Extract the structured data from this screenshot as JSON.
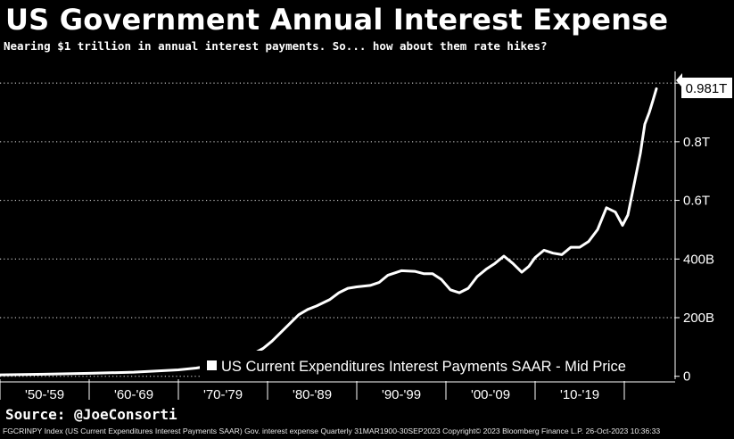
{
  "title": "US Government Annual Interest Expense",
  "subtitle": "Nearing $1 trillion in annual interest payments. So... how about them rate hikes?",
  "source": "Source: @JoeConsorti",
  "footer": "FGCRINPY Index (US Current Expenditures Interest Payments SAAR) Gov. interest expense  Quarterly 31MAR1900-30SEP2023  Copyright© 2023 Bloomberg Finance L.P.  26-Oct-2023 10:36:33",
  "colors": {
    "background": "#000000",
    "line": "#ffffff",
    "grid": "#ffffff",
    "legend_bg": "#000000"
  },
  "chart_data": {
    "type": "line",
    "title": "US Government Annual Interest Expense",
    "subtitle": "Nearing $1 trillion in annual interest payments. So... how about them rate hikes?",
    "xlabel": "",
    "ylabel": "",
    "x_tick_labels": [
      "'50-'59",
      "'60-'69",
      "'70-'79",
      "'80-'89",
      "'90-'99",
      "'00-'09",
      "'10-'19"
    ],
    "y_tick_labels": [
      "0",
      "200B",
      "400B",
      "0.6T",
      "0.8T"
    ],
    "y_ticks": [
      0,
      200,
      400,
      600,
      800
    ],
    "ylim": [
      -10,
      1040
    ],
    "xlim": [
      1950.0,
      2025.7
    ],
    "y_unit": "billions USD",
    "grid": true,
    "legend_position": "bottom-right",
    "last_value_label": "0.981T",
    "series": [
      {
        "name": "US Current Expenditures Interest Payments SAAR - Mid Price",
        "color": "#ffffff",
        "x": [
          1950.0,
          1955.0,
          1960.0,
          1965.0,
          1970.0,
          1972.0,
          1974.0,
          1976.0,
          1978.0,
          1979.5,
          1980.5,
          1981.5,
          1982.5,
          1983.5,
          1984.5,
          1985.5,
          1987.0,
          1988.0,
          1989.0,
          1990.0,
          1991.5,
          1992.5,
          1993.5,
          1995.0,
          1996.5,
          1997.5,
          1998.5,
          1999.5,
          2000.5,
          2001.5,
          2002.5,
          2003.5,
          2004.5,
          2005.5,
          2006.5,
          2007.5,
          2008.5,
          2009.3,
          2010.0,
          2011.0,
          2012.0,
          2013.0,
          2014.0,
          2015.0,
          2016.0,
          2017.0,
          2018.0,
          2019.0,
          2019.8,
          2020.4,
          2021.0,
          2021.8,
          2022.3,
          2022.8,
          2023.2,
          2023.6
        ],
        "y": [
          5,
          7,
          10,
          14,
          22,
          28,
          38,
          50,
          70,
          95,
          120,
          150,
          180,
          210,
          228,
          240,
          262,
          285,
          300,
          305,
          310,
          320,
          345,
          360,
          358,
          350,
          350,
          330,
          295,
          285,
          300,
          340,
          365,
          385,
          410,
          385,
          355,
          375,
          405,
          430,
          420,
          415,
          440,
          440,
          460,
          500,
          575,
          560,
          515,
          550,
          640,
          760,
          860,
          900,
          940,
          981
        ]
      }
    ]
  }
}
